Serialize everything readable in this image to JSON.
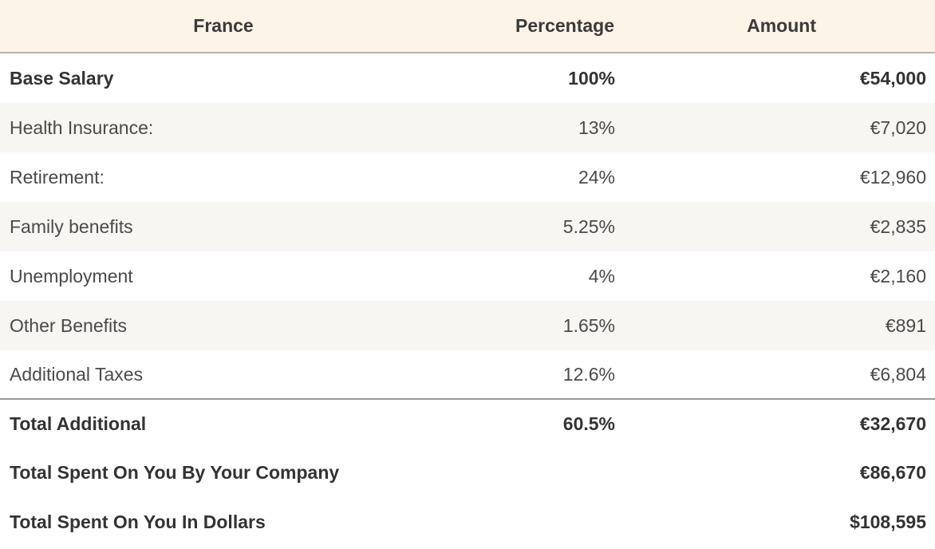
{
  "table": {
    "headers": {
      "country": "France",
      "percentage": "Percentage",
      "amount": "Amount"
    },
    "rows": [
      {
        "label": "Base Salary",
        "percentage": "100%",
        "amount": "€54,000"
      },
      {
        "label": "Health Insurance:",
        "percentage": "13%",
        "amount": "€7,020"
      },
      {
        "label": "Retirement:",
        "percentage": "24%",
        "amount": "€12,960"
      },
      {
        "label": "Family benefits",
        "percentage": "5.25%",
        "amount": "€2,835"
      },
      {
        "label": "Unemployment",
        "percentage": "4%",
        "amount": "€2,160"
      },
      {
        "label": "Other Benefits",
        "percentage": "1.65%",
        "amount": "€891"
      },
      {
        "label": "Additional Taxes",
        "percentage": "12.6%",
        "amount": "€6,804"
      },
      {
        "label": "Total Additional",
        "percentage": "60.5%",
        "amount": "€32,670"
      },
      {
        "label": "Total Spent On You By Your Company",
        "percentage": "",
        "amount": "€86,670"
      },
      {
        "label": "Total Spent On You In Dollars",
        "percentage": "",
        "amount": "$108,595"
      }
    ]
  }
}
